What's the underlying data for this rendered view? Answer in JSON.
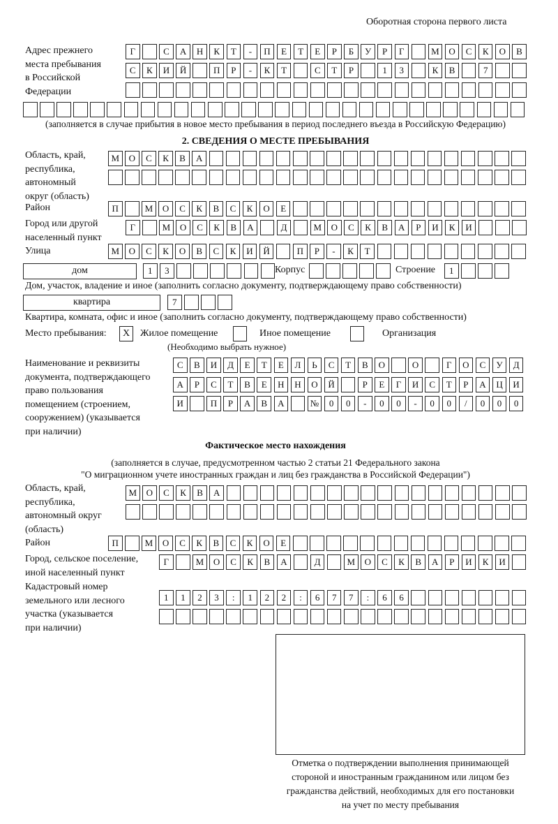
{
  "header": {
    "page_side": "Оборотная сторона первого листа"
  },
  "previous_address": {
    "label": "Адрес прежнего\nместа пребывания\nв Российской\nФедерации",
    "rows": [
      [
        "Г",
        "",
        "С",
        "А",
        "Н",
        "К",
        "Т",
        "-",
        "П",
        "Е",
        "Т",
        "Е",
        "Р",
        "Б",
        "У",
        "Р",
        "Г",
        "",
        "М",
        "О",
        "С",
        "К",
        "О",
        "В"
      ],
      [
        "С",
        "К",
        "И",
        "Й",
        "",
        "П",
        "Р",
        "-",
        "К",
        "Т",
        "",
        "С",
        "Т",
        "Р",
        "",
        "1",
        "3",
        "",
        "К",
        "В",
        "",
        "7",
        "",
        ""
      ],
      [
        "",
        "",
        "",
        "",
        "",
        "",
        "",
        "",
        "",
        "",
        "",
        "",
        "",
        "",
        "",
        "",
        "",
        "",
        "",
        "",
        "",
        "",
        "",
        ""
      ],
      [
        "",
        "",
        "",
        "",
        "",
        "",
        "",
        "",
        "",
        "",
        "",
        "",
        "",
        "",
        "",
        "",
        "",
        "",
        "",
        "",
        "",
        "",
        "",
        "",
        "",
        "",
        "",
        "",
        "",
        ""
      ]
    ],
    "note": "(заполняется в случае прибытия в новое место пребывания в период последнего въезда в Российскую Федерацию)"
  },
  "section2": {
    "title": "2. СВЕДЕНИЯ О МЕСТЕ ПРЕБЫВАНИЯ",
    "region_label": "Область, край,\nреспублика,\nавтономный\nокруг (область)",
    "region_rows": [
      [
        "М",
        "О",
        "С",
        "К",
        "В",
        "А",
        "",
        "",
        "",
        "",
        "",
        "",
        "",
        "",
        "",
        "",
        "",
        "",
        "",
        "",
        "",
        "",
        "",
        "",
        ""
      ],
      [
        "",
        "",
        "",
        "",
        "",
        "",
        "",
        "",
        "",
        "",
        "",
        "",
        "",
        "",
        "",
        "",
        "",
        "",
        "",
        "",
        "",
        "",
        "",
        "",
        ""
      ]
    ],
    "district_label": "Район",
    "district_row": [
      "П",
      "",
      "М",
      "О",
      "С",
      "К",
      "В",
      "С",
      "К",
      "О",
      "Е",
      "",
      "",
      "",
      "",
      "",
      "",
      "",
      "",
      "",
      "",
      "",
      "",
      "",
      ""
    ],
    "city_label": "Город или другой\nнаселенный пункт",
    "city_row": [
      "Г",
      "",
      "М",
      "О",
      "С",
      "К",
      "В",
      "А",
      "",
      "Д",
      "",
      "М",
      "О",
      "С",
      "К",
      "В",
      "А",
      "Р",
      "И",
      "К",
      "И",
      "",
      "",
      ""
    ],
    "street_label": "Улица",
    "street_row": [
      "М",
      "О",
      "С",
      "К",
      "О",
      "В",
      "С",
      "К",
      "И",
      "Й",
      "",
      "П",
      "Р",
      "-",
      "К",
      "Т",
      "",
      "",
      "",
      "",
      "",
      "",
      "",
      "",
      ""
    ],
    "house_type": "дом",
    "house_row": [
      "1",
      "3",
      "",
      "",
      "",
      "",
      "",
      ""
    ],
    "korpus_label": "Корпус",
    "korpus_row": [
      "",
      "",
      "",
      "",
      ""
    ],
    "building_label": "Строение",
    "building_row": [
      "1",
      "",
      "",
      ""
    ],
    "house_note": "Дом, участок, владение и иное (заполнить согласно документу, подтверждающему право собственности)",
    "apartment_type": "квартира",
    "apartment_row": [
      "7",
      "",
      "",
      ""
    ],
    "apartment_note": "Квартира, комната, офис и иное (заполнить согласно документу, подтверждающему право собственности)",
    "stay_place_label": "Место пребывания:",
    "stay_options": [
      {
        "label": "Жилое помещение",
        "mark": "X"
      },
      {
        "label": "Иное помещение",
        "mark": ""
      },
      {
        "label": "Организация",
        "mark": ""
      }
    ],
    "stay_note": "(Необходимо выбрать нужное)",
    "document_label": "Наименование и реквизиты\nдокумента, подтверждающего\nправо пользования\nпомещением (строением,\nсооружением) (указывается\nпри наличии)",
    "document_rows": [
      [
        "С",
        "В",
        "И",
        "Д",
        "Е",
        "Т",
        "Е",
        "Л",
        "Ь",
        "С",
        "Т",
        "В",
        "О",
        "",
        "О",
        "",
        "Г",
        "О",
        "С",
        "У",
        "Д"
      ],
      [
        "А",
        "Р",
        "С",
        "Т",
        "В",
        "Е",
        "Н",
        "Н",
        "О",
        "Й",
        "",
        "Р",
        "Е",
        "Г",
        "И",
        "С",
        "Т",
        "Р",
        "А",
        "Ц",
        "И"
      ],
      [
        "И",
        "",
        "П",
        "Р",
        "А",
        "В",
        "А",
        "",
        "№",
        "0",
        "0",
        "-",
        "0",
        "0",
        "-",
        "0",
        "0",
        "/",
        "0",
        "0",
        "0"
      ]
    ]
  },
  "actual_location": {
    "title": "Фактическое место нахождения",
    "note_line1": "(заполняется в случае, предусмотренном частью 2 статьи 21 Федерального закона",
    "note_line2": "\"О миграционном учете иностранных граждан и лиц без гражданства в Российской Федерации\")",
    "region_label": "Область, край,\nреспублика,\nавтономный округ\n(область)",
    "region_rows": [
      [
        "М",
        "О",
        "С",
        "К",
        "В",
        "А",
        "",
        "",
        "",
        "",
        "",
        "",
        "",
        "",
        "",
        "",
        "",
        "",
        "",
        "",
        "",
        "",
        "",
        ""
      ],
      [
        "",
        "",
        "",
        "",
        "",
        "",
        "",
        "",
        "",
        "",
        "",
        "",
        "",
        "",
        "",
        "",
        "",
        "",
        "",
        "",
        "",
        "",
        "",
        ""
      ]
    ],
    "district_label": "Район",
    "district_row": [
      "П",
      "",
      "М",
      "О",
      "С",
      "К",
      "В",
      "С",
      "К",
      "О",
      "Е",
      "",
      "",
      "",
      "",
      "",
      "",
      "",
      "",
      "",
      "",
      "",
      "",
      "",
      ""
    ],
    "city_label": "Город, сельское поселение,\nиной населенный пункт",
    "city_row": [
      "Г",
      "",
      "М",
      "О",
      "С",
      "К",
      "В",
      "А",
      "",
      "Д",
      "",
      "М",
      "О",
      "С",
      "К",
      "В",
      "А",
      "Р",
      "И",
      "К",
      "И",
      ""
    ],
    "cadastral_label": "Кадастровый номер\nземельного или лесного\nучастка (указывается\nпри наличии)",
    "cadastral_rows": [
      [
        "1",
        "1",
        "2",
        "3",
        ":",
        "1",
        "2",
        "2",
        ":",
        "6",
        "7",
        "7",
        ":",
        "6",
        "6",
        "",
        "",
        "",
        "",
        "",
        "",
        ""
      ],
      [
        "",
        "",
        "",
        "",
        "",
        "",
        "",
        "",
        "",
        "",
        "",
        "",
        "",
        "",
        "",
        "",
        "",
        "",
        "",
        "",
        "",
        ""
      ]
    ]
  },
  "confirmation": {
    "caption": "Отметка о подтверждении выполнения принимающей\nстороной и иностранным гражданином или лицом без\nгражданства действий, необходимых для его постановки\nна учет по месту пребывания"
  }
}
